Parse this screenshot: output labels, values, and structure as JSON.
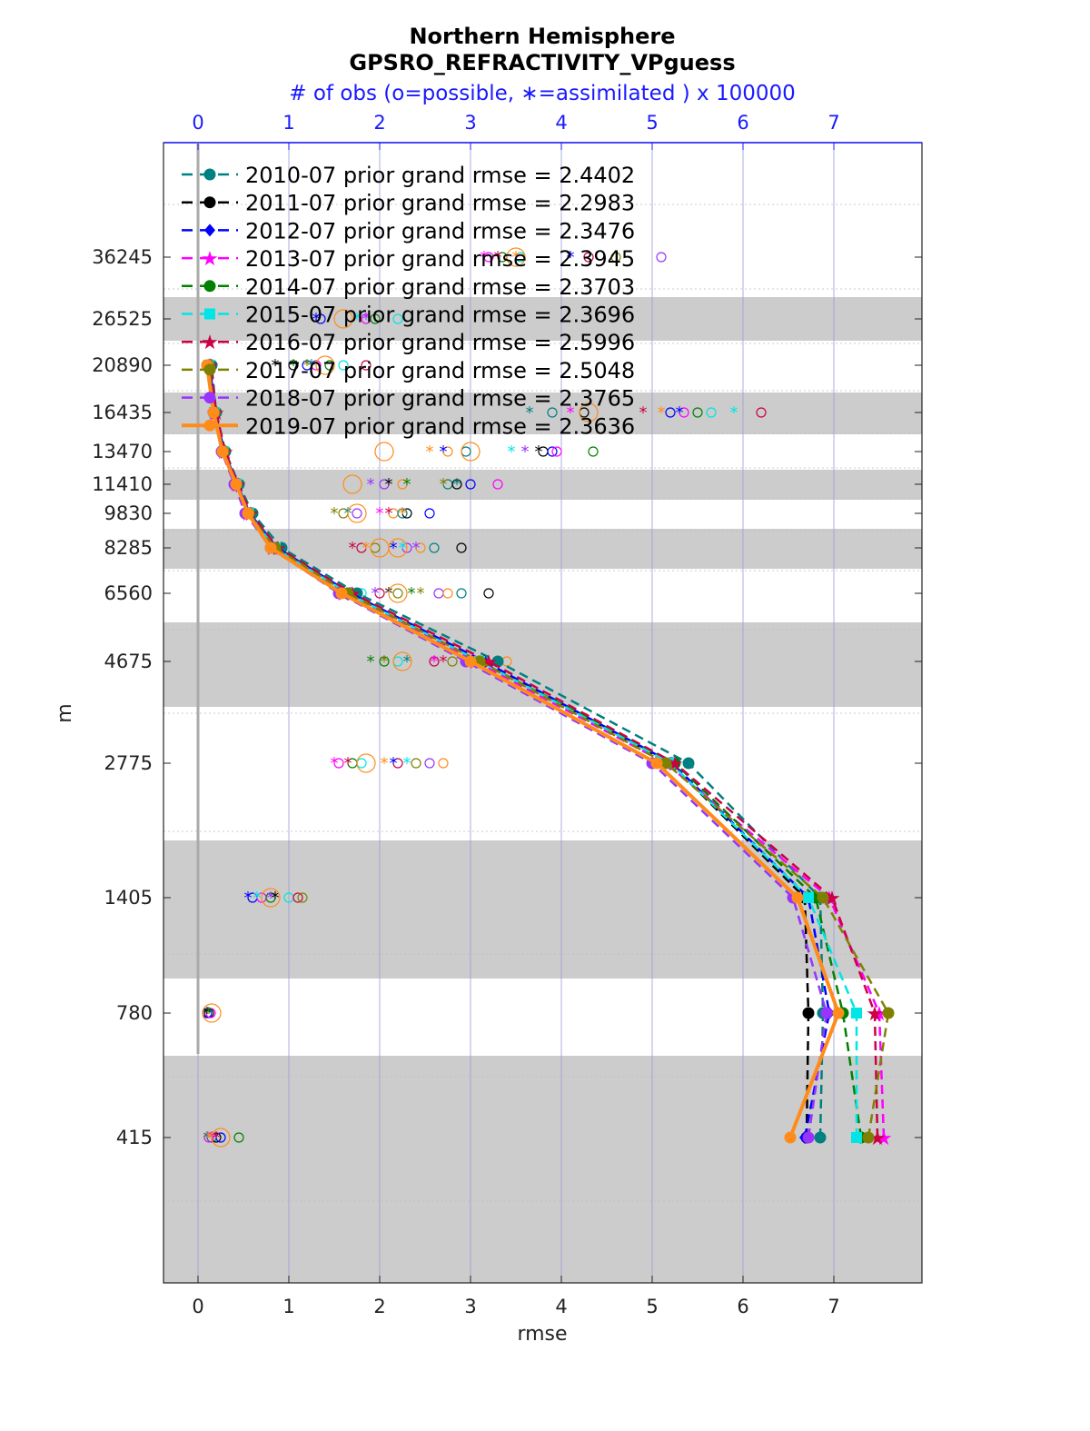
{
  "chart_data": {
    "type": "line",
    "title": "Northern Hemisphere",
    "subtitle": "GPSRO_REFRACTIVITY_VPguess",
    "top_axis_label": "# of obs (o=possible, ∗=assimilated ) x 100000",
    "xlabel": "rmse",
    "ylabel": "m",
    "xlim": [
      -0.38,
      7.97
    ],
    "x_ticks": [
      "0",
      "1",
      "2",
      "3",
      "4",
      "5",
      "6",
      "7"
    ],
    "top_ticks": [
      "0",
      "1",
      "2",
      "3",
      "4",
      "5",
      "6",
      "7"
    ],
    "y_levels": [
      415,
      780,
      1405,
      2775,
      4675,
      6560,
      8285,
      9830,
      11410,
      13470,
      16435,
      20890,
      26525,
      36245
    ],
    "y_tick_labels": [
      "415",
      "780",
      "1405",
      "2775",
      "4675",
      "6560",
      "8285",
      "9830",
      "11410",
      "13470",
      "16435",
      "20890",
      "26525",
      "36245"
    ],
    "grid": true,
    "legend_position": "top-left",
    "series": [
      {
        "name": "2010-07 prior grand rmse = 2.4402",
        "color": "#008080",
        "marker": "circle",
        "values": [
          6.85,
          6.88,
          6.85,
          5.4,
          3.3,
          1.75,
          0.92,
          0.6,
          0.45,
          0.3,
          0.2,
          0.15
        ]
      },
      {
        "name": "2011-07 prior grand rmse = 2.2983",
        "color": "#000000",
        "marker": "circle",
        "values": [
          6.7,
          6.72,
          6.68,
          5.2,
          3.1,
          1.65,
          0.85,
          0.55,
          0.42,
          0.28,
          0.18,
          0.12
        ]
      },
      {
        "name": "2012-07 prior grand rmse = 2.3476",
        "color": "#0000ff",
        "marker": "diamond",
        "values": [
          6.68,
          6.95,
          6.72,
          5.22,
          3.15,
          1.68,
          0.87,
          0.57,
          0.43,
          0.29,
          0.19,
          0.13
        ]
      },
      {
        "name": "2013-07 prior grand rmse = 2.3945",
        "color": "#ff00ff",
        "marker": "star",
        "values": [
          7.55,
          7.5,
          6.95,
          5.15,
          3.05,
          1.6,
          0.82,
          0.55,
          0.42,
          0.28,
          0.18,
          0.12
        ]
      },
      {
        "name": "2014-07 prior grand rmse = 2.3703",
        "color": "#008000",
        "marker": "circle",
        "values": [
          7.3,
          7.1,
          6.8,
          5.25,
          3.1,
          1.65,
          0.85,
          0.56,
          0.42,
          0.28,
          0.18,
          0.12
        ]
      },
      {
        "name": "2015-07 prior grand rmse = 2.3696",
        "color": "#00e5e5",
        "marker": "square",
        "values": [
          7.25,
          7.25,
          6.72,
          5.2,
          3.1,
          1.65,
          0.85,
          0.56,
          0.42,
          0.28,
          0.18,
          0.12
        ]
      },
      {
        "name": "2016-07 prior grand rmse = 2.5996",
        "color": "#cc0044",
        "marker": "star",
        "values": [
          7.48,
          7.45,
          6.98,
          5.25,
          3.2,
          1.7,
          0.88,
          0.58,
          0.44,
          0.3,
          0.2,
          0.14
        ]
      },
      {
        "name": "2017-07 prior grand rmse = 2.5048",
        "color": "#808000",
        "marker": "circle",
        "values": [
          7.38,
          7.6,
          6.88,
          5.15,
          3.1,
          1.65,
          0.85,
          0.56,
          0.42,
          0.28,
          0.18,
          0.12
        ]
      },
      {
        "name": "2018-07 prior grand rmse = 2.3765",
        "color": "#9933ff",
        "marker": "circle",
        "values": [
          6.72,
          6.92,
          6.55,
          5.0,
          2.95,
          1.55,
          0.8,
          0.52,
          0.4,
          0.26,
          0.17,
          0.1
        ]
      },
      {
        "name": "2019-07 prior grand rmse = 2.3636",
        "color": "#ff8c1a",
        "marker": "circle",
        "values": [
          6.52,
          7.05,
          6.6,
          5.05,
          3.0,
          1.58,
          0.8,
          0.55,
          0.42,
          0.27,
          0.17,
          0.1
        ]
      }
    ],
    "obs_count_levels": [
      415,
      780,
      1405,
      2775,
      4675,
      6560,
      8285,
      9830,
      11410,
      13470,
      16435,
      20890,
      26525,
      36245
    ],
    "obs_possible": [
      [
        0.15,
        0.2,
        0.25,
        0.12,
        0.45
      ],
      [
        0.12,
        0.1,
        0.14
      ],
      [
        0.6,
        0.7,
        0.8,
        1.0,
        1.1,
        1.15
      ],
      [
        1.55,
        1.7,
        1.8,
        2.2,
        2.4,
        2.55,
        2.7
      ],
      [
        2.05,
        2.2,
        2.6,
        2.8,
        3.1,
        3.4
      ],
      [
        1.8,
        2.0,
        2.2,
        2.65,
        2.75,
        2.9,
        3.2
      ],
      [
        1.8,
        1.95,
        2.3,
        2.45,
        2.6,
        2.9
      ],
      [
        1.6,
        1.75,
        2.15,
        2.25,
        2.3,
        2.55
      ],
      [
        2.05,
        2.25,
        2.75,
        2.85,
        3.0,
        3.3
      ],
      [
        2.75,
        2.95,
        3.8,
        3.9,
        3.95,
        4.35
      ],
      [
        3.9,
        4.25,
        5.2,
        5.35,
        5.5,
        5.65,
        6.2
      ],
      [
        1.05,
        1.2,
        1.3,
        1.45,
        1.6,
        1.85
      ],
      [
        1.35,
        1.85,
        1.95,
        2.2
      ],
      [
        3.2,
        3.35,
        3.55,
        4.3,
        4.6,
        5.1
      ]
    ],
    "obs_assimilated": [
      [
        0.1,
        0.15,
        0.2,
        0.12
      ],
      [
        0.1,
        0.12
      ],
      [
        0.55,
        0.65,
        0.8,
        0.85
      ],
      [
        1.5,
        1.65,
        2.05,
        2.15,
        2.3
      ],
      [
        1.9,
        2.05,
        2.3,
        2.6,
        2.7
      ],
      [
        1.7,
        1.95,
        2.1,
        2.35,
        2.45
      ],
      [
        1.7,
        1.85,
        2.15,
        2.25,
        2.4
      ],
      [
        1.5,
        1.65,
        2.0,
        2.1,
        2.25
      ],
      [
        1.9,
        2.1,
        2.3,
        2.7,
        2.85
      ],
      [
        2.55,
        2.7,
        3.45,
        3.6,
        3.75
      ],
      [
        3.65,
        4.1,
        4.9,
        5.1,
        5.3,
        5.9
      ],
      [
        0.85,
        1.05,
        1.2,
        1.25
      ],
      [
        1.3,
        1.75,
        1.85
      ],
      [
        3.15,
        3.3,
        3.5,
        4.1
      ]
    ]
  }
}
